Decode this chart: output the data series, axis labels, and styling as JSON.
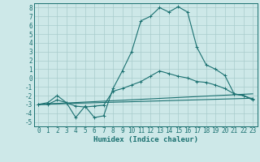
{
  "xlabel": "Humidex (Indice chaleur)",
  "bg_color": "#cde8e8",
  "grid_color": "#a8cccc",
  "line_color": "#1a7070",
  "xlim": [
    -0.5,
    23.5
  ],
  "ylim": [
    -5.5,
    8.5
  ],
  "xticks": [
    0,
    1,
    2,
    3,
    4,
    5,
    6,
    7,
    8,
    9,
    10,
    11,
    12,
    13,
    14,
    15,
    16,
    17,
    18,
    19,
    20,
    21,
    22,
    23
  ],
  "yticks": [
    -5,
    -4,
    -3,
    -2,
    -1,
    0,
    1,
    2,
    3,
    4,
    5,
    6,
    7,
    8
  ],
  "line1_x": [
    0,
    1,
    2,
    3,
    4,
    5,
    6,
    7,
    8,
    9,
    10,
    11,
    12,
    13,
    14,
    15,
    16,
    17,
    18,
    19,
    20,
    21,
    22,
    23
  ],
  "line1_y": [
    -3,
    -3,
    -2.5,
    -2.8,
    -4.5,
    -3.2,
    -4.5,
    -4.3,
    -1.2,
    0.8,
    3.0,
    6.5,
    7.0,
    8.0,
    7.5,
    8.1,
    7.5,
    3.5,
    1.5,
    1.0,
    0.3,
    -1.8,
    -2.0,
    -2.5
  ],
  "line2_x": [
    0,
    1,
    2,
    3,
    4,
    5,
    6,
    7,
    8,
    9,
    10,
    11,
    12,
    13,
    14,
    15,
    16,
    17,
    18,
    19,
    20,
    21,
    22,
    23
  ],
  "line2_y": [
    -3,
    -2.8,
    -2.0,
    -2.8,
    -3.2,
    -3.3,
    -3.2,
    -3.1,
    -1.5,
    -1.2,
    -0.8,
    -0.4,
    0.2,
    0.8,
    0.5,
    0.2,
    0.0,
    -0.4,
    -0.5,
    -0.8,
    -1.2,
    -1.8,
    -2.0,
    -2.4
  ],
  "line3_x": [
    0,
    23
  ],
  "line3_y": [
    -3.0,
    -1.8
  ],
  "line4_x": [
    0,
    23
  ],
  "line4_y": [
    -3.0,
    -2.3
  ],
  "tick_fontsize": 5.5,
  "xlabel_fontsize": 6.5
}
